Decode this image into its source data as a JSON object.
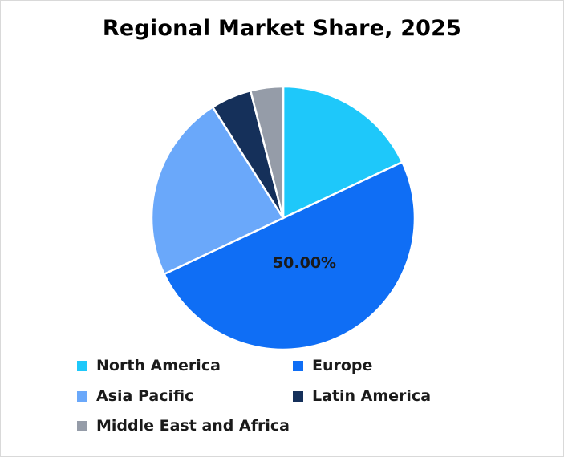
{
  "chart_data": {
    "type": "pie",
    "title": "Regional Market Share, 2025",
    "categories": [
      "North America",
      "Europe",
      "Asia Pacific",
      "Latin America",
      "Middle East and Africa"
    ],
    "values": [
      18,
      50,
      23,
      5,
      4
    ],
    "colors": [
      "#1ec8fa",
      "#0f6ef5",
      "#6aa8fa",
      "#15305a",
      "#959ca8"
    ],
    "data_labels": [
      "",
      "50.00%",
      "",
      "",
      ""
    ],
    "legend": "bottom",
    "start_angle_deg": 0,
    "direction": "clockwise"
  }
}
